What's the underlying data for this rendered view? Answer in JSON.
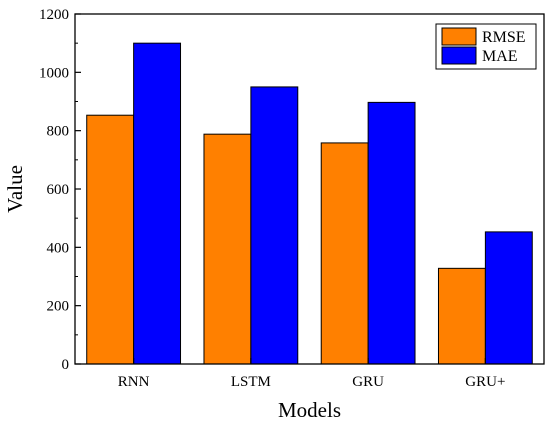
{
  "chart_data": {
    "type": "bar",
    "categories": [
      "RNN",
      "LSTM",
      "GRU",
      "GRU+"
    ],
    "series": [
      {
        "name": "RMSE",
        "color": "#FF8000",
        "values": [
          853,
          788,
          758,
          328
        ]
      },
      {
        "name": "MAE",
        "color": "#0000FF",
        "values": [
          1100,
          950,
          897,
          453
        ]
      }
    ],
    "xlabel": "Models",
    "ylabel": "Value",
    "ylim": [
      0,
      1200
    ],
    "yticks": [
      "0",
      "200",
      "400",
      "600",
      "800",
      "1000",
      "1200"
    ],
    "grid": false,
    "legend_position": "top-right"
  }
}
